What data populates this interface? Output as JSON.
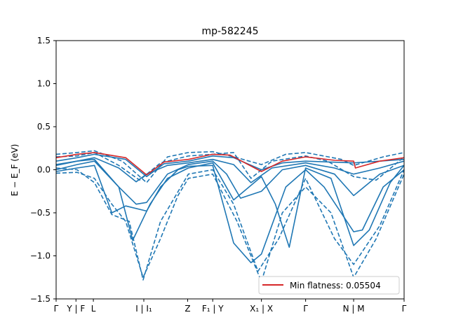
{
  "chart_data": {
    "type": "line",
    "title": "mp-582245",
    "xlabel": "",
    "ylabel": "E − E_F (eV)",
    "ylim": [
      -1.5,
      1.5
    ],
    "yticks": [
      -1.5,
      -1.0,
      -0.5,
      0.0,
      0.5,
      1.0,
      1.5
    ],
    "ytick_labels": [
      "−1.5",
      "−1.0",
      "−0.5",
      "0.0",
      "0.5",
      "1.0",
      "1.5"
    ],
    "xlim": [
      0,
      10
    ],
    "kpath_ticks": [
      {
        "x": 0.0,
        "label": "Γ"
      },
      {
        "x": 0.57,
        "label": "Y | F"
      },
      {
        "x": 1.07,
        "label": "L"
      },
      {
        "x": 2.52,
        "label": "I | I₁"
      },
      {
        "x": 3.78,
        "label": "Z"
      },
      {
        "x": 4.5,
        "label": "F₁ | Y"
      },
      {
        "x": 5.9,
        "label": "X₁ | X"
      },
      {
        "x": 7.17,
        "label": "Γ"
      },
      {
        "x": 8.55,
        "label": "N | M"
      },
      {
        "x": 10.0,
        "label": "Γ"
      }
    ],
    "legend": {
      "placement": "lower-right",
      "entries": [
        "Min flatness: 0.05504"
      ]
    },
    "grid": false,
    "colors": {
      "bands": "#1f77b4",
      "flat_band": "#d62728"
    },
    "series": [
      {
        "style": "solid",
        "values": [
          [
            0,
            0.1
          ],
          [
            0.6,
            0.14
          ],
          [
            1.1,
            0.18
          ],
          [
            2.0,
            0.12
          ],
          [
            2.6,
            -0.08
          ],
          [
            3.1,
            0.07
          ],
          [
            3.8,
            0.1
          ],
          [
            4.5,
            0.16
          ],
          [
            5.1,
            0.14
          ],
          [
            5.9,
            0.0
          ],
          [
            6.5,
            0.08
          ],
          [
            7.17,
            0.1
          ],
          [
            8.55,
            0.08
          ],
          [
            9.3,
            0.1
          ],
          [
            10,
            0.12
          ]
        ]
      },
      {
        "style": "solid",
        "values": [
          [
            0,
            0.05
          ],
          [
            0.6,
            0.1
          ],
          [
            1.1,
            0.14
          ],
          [
            1.8,
            0.02
          ],
          [
            2.3,
            -0.14
          ],
          [
            2.6,
            -0.05
          ],
          [
            3.2,
            0.05
          ],
          [
            3.8,
            0.08
          ],
          [
            4.5,
            0.12
          ],
          [
            5.1,
            0.06
          ],
          [
            5.6,
            -0.15
          ],
          [
            6.2,
            0.02
          ],
          [
            7.17,
            0.08
          ],
          [
            8.0,
            0.02
          ],
          [
            8.55,
            -0.05
          ],
          [
            9.3,
            0.02
          ],
          [
            10,
            0.1
          ]
        ]
      },
      {
        "style": "solid",
        "values": [
          [
            0,
            0.0
          ],
          [
            0.6,
            0.06
          ],
          [
            1.1,
            0.1
          ],
          [
            1.8,
            -0.2
          ],
          [
            2.3,
            -0.4
          ],
          [
            2.6,
            -0.38
          ],
          [
            3.2,
            -0.05
          ],
          [
            3.8,
            0.06
          ],
          [
            4.5,
            0.1
          ],
          [
            4.9,
            -0.05
          ],
          [
            5.3,
            -0.33
          ],
          [
            5.9,
            -0.25
          ],
          [
            6.5,
            0.0
          ],
          [
            7.17,
            0.05
          ],
          [
            8.0,
            -0.05
          ],
          [
            8.55,
            -0.3
          ],
          [
            9.3,
            -0.05
          ],
          [
            10,
            0.05
          ]
        ]
      },
      {
        "style": "solid",
        "values": [
          [
            0,
            -0.02
          ],
          [
            0.6,
            0.02
          ],
          [
            1.1,
            0.05
          ],
          [
            1.6,
            -0.5
          ],
          [
            2.0,
            -0.42
          ],
          [
            2.6,
            -0.48
          ],
          [
            3.0,
            -0.2
          ],
          [
            3.5,
            0.0
          ],
          [
            3.8,
            0.04
          ],
          [
            4.5,
            0.05
          ],
          [
            5.1,
            -0.85
          ],
          [
            5.6,
            -1.08
          ],
          [
            5.9,
            -0.98
          ],
          [
            6.6,
            -0.2
          ],
          [
            7.17,
            0.0
          ],
          [
            7.7,
            -0.2
          ],
          [
            8.55,
            -0.72
          ],
          [
            8.8,
            -0.7
          ],
          [
            9.4,
            -0.2
          ],
          [
            10,
            0.0
          ]
        ]
      },
      {
        "style": "solid",
        "values": [
          [
            0,
            0.06
          ],
          [
            0.6,
            0.1
          ],
          [
            1.1,
            0.12
          ],
          [
            1.8,
            -0.2
          ],
          [
            2.2,
            -0.82
          ],
          [
            2.7,
            -0.4
          ],
          [
            3.2,
            -0.1
          ],
          [
            3.8,
            0.02
          ],
          [
            4.5,
            0.08
          ],
          [
            5.1,
            -0.35
          ],
          [
            5.9,
            -0.08
          ],
          [
            6.3,
            -0.4
          ],
          [
            6.7,
            -0.9
          ],
          [
            7.17,
            0.02
          ],
          [
            7.9,
            -0.1
          ],
          [
            8.55,
            -0.88
          ],
          [
            9.0,
            -0.7
          ],
          [
            9.6,
            -0.15
          ],
          [
            10,
            0.05
          ]
        ]
      },
      {
        "style": "dashed",
        "values": [
          [
            0,
            0.18
          ],
          [
            0.6,
            0.2
          ],
          [
            1.1,
            0.22
          ],
          [
            1.9,
            0.1
          ],
          [
            2.6,
            -0.15
          ],
          [
            3.2,
            0.15
          ],
          [
            3.8,
            0.2
          ],
          [
            4.5,
            0.21
          ],
          [
            5.2,
            0.14
          ],
          [
            5.9,
            0.06
          ],
          [
            6.6,
            0.18
          ],
          [
            7.17,
            0.2
          ],
          [
            8.2,
            0.12
          ],
          [
            8.55,
            0.05
          ],
          [
            9.4,
            0.15
          ],
          [
            10,
            0.2
          ]
        ]
      },
      {
        "style": "dashed",
        "values": [
          [
            0,
            -0.04
          ],
          [
            0.6,
            -0.03
          ],
          [
            1.1,
            -0.1
          ],
          [
            1.6,
            -0.4
          ],
          [
            2.0,
            -0.6
          ],
          [
            2.5,
            -1.25
          ],
          [
            3.0,
            -0.8
          ],
          [
            3.5,
            -0.3
          ],
          [
            3.8,
            -0.1
          ],
          [
            4.5,
            -0.05
          ],
          [
            5.2,
            -0.6
          ],
          [
            5.9,
            -1.3
          ],
          [
            6.5,
            -0.5
          ],
          [
            7.17,
            -0.2
          ],
          [
            7.9,
            -0.5
          ],
          [
            8.55,
            -1.25
          ],
          [
            9.2,
            -0.8
          ],
          [
            10,
            -0.05
          ]
        ]
      },
      {
        "style": "dashed",
        "values": [
          [
            0,
            0.02
          ],
          [
            0.6,
            0.0
          ],
          [
            1.1,
            -0.15
          ],
          [
            1.6,
            -0.52
          ],
          [
            2.1,
            -0.6
          ],
          [
            2.5,
            -1.28
          ],
          [
            3.0,
            -0.6
          ],
          [
            3.8,
            -0.05
          ],
          [
            4.5,
            0.0
          ],
          [
            5.1,
            -0.4
          ],
          [
            5.8,
            -1.18
          ],
          [
            6.4,
            -0.8
          ],
          [
            7.17,
            -0.1
          ],
          [
            8.0,
            -0.8
          ],
          [
            8.55,
            -1.1
          ],
          [
            9.3,
            -0.65
          ],
          [
            10,
            0.0
          ]
        ]
      },
      {
        "style": "dashed",
        "values": [
          [
            0,
            0.15
          ],
          [
            0.6,
            0.16
          ],
          [
            1.1,
            0.2
          ],
          [
            1.8,
            0.05
          ],
          [
            2.4,
            -0.12
          ],
          [
            3.0,
            0.08
          ],
          [
            3.8,
            0.16
          ],
          [
            4.5,
            0.18
          ],
          [
            5.1,
            0.2
          ],
          [
            5.6,
            -0.1
          ],
          [
            6.2,
            0.1
          ],
          [
            7.17,
            0.16
          ],
          [
            7.8,
            0.1
          ],
          [
            8.55,
            -0.08
          ],
          [
            9.2,
            -0.12
          ],
          [
            10,
            0.15
          ]
        ]
      },
      {
        "style": "flat",
        "values": [
          [
            0,
            0.14
          ],
          [
            0.6,
            0.18
          ],
          [
            1.1,
            0.2
          ],
          [
            2.0,
            0.14
          ],
          [
            2.6,
            -0.06
          ],
          [
            3.1,
            0.09
          ],
          [
            3.8,
            0.12
          ],
          [
            4.5,
            0.18
          ],
          [
            5.0,
            0.17
          ],
          [
            5.9,
            -0.02
          ],
          [
            6.5,
            0.1
          ],
          [
            7.17,
            0.15
          ],
          [
            8.0,
            0.11
          ],
          [
            8.55,
            0.1
          ],
          [
            8.6,
            0.02
          ],
          [
            9.3,
            0.1
          ],
          [
            10,
            0.14
          ]
        ]
      }
    ]
  }
}
